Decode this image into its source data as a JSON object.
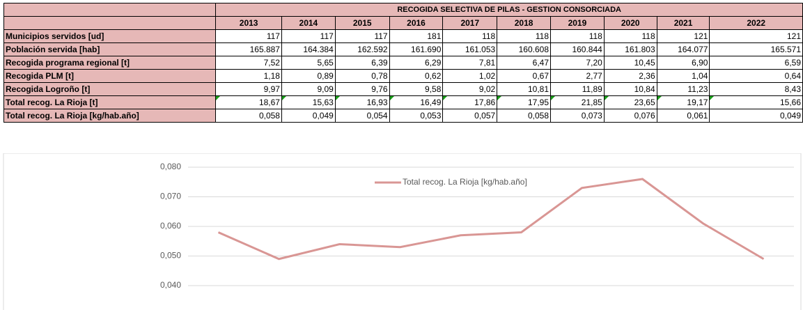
{
  "table": {
    "title": "RECOGIDA SELECTIVA DE PILAS - GESTION CONSORCIADA",
    "columns": [
      "2013",
      "2014",
      "2015",
      "2016",
      "2017",
      "2018",
      "2019",
      "2020",
      "2021",
      "2022"
    ],
    "rows": [
      {
        "label": "Municipios servidos [ud]",
        "cells": [
          "117",
          "117",
          "117",
          "181",
          "118",
          "118",
          "118",
          "118",
          "121",
          "121"
        ]
      },
      {
        "label": "Población servida [hab]",
        "cells": [
          "165.887",
          "164.384",
          "162.592",
          "161.690",
          "161.053",
          "160.608",
          "160.844",
          "161.803",
          "164.077",
          "165.571"
        ]
      },
      {
        "label": "Recogida programa regional [t]",
        "cells": [
          "7,52",
          "5,65",
          "6,39",
          "6,29",
          "7,81",
          "6,47",
          "7,20",
          "10,45",
          "6,90",
          "6,59"
        ]
      },
      {
        "label": "Recogida PLM [t]",
        "cells": [
          "1,18",
          "0,89",
          "0,78",
          "0,62",
          "1,02",
          "0,67",
          "2,77",
          "2,36",
          "1,04",
          "0,64"
        ]
      },
      {
        "label": "Recogida Logroño [t]",
        "cells": [
          "9,97",
          "9,09",
          "9,76",
          "9,58",
          "9,02",
          "10,81",
          "11,89",
          "10,84",
          "11,23",
          "8,43"
        ]
      },
      {
        "label": "Total recog. La Rioja [t]",
        "cells": [
          "18,67",
          "15,63",
          "16,93",
          "16,49",
          "17,86",
          "17,95",
          "21,85",
          "23,65",
          "19,17",
          "15,66"
        ]
      },
      {
        "label": "Total recog. La Rioja [kg/hab.año]",
        "cells": [
          "0,058",
          "0,049",
          "0,054",
          "0,053",
          "0,057",
          "0,058",
          "0,073",
          "0,076",
          "0,061",
          "0,049"
        ]
      }
    ]
  },
  "chart_data": {
    "type": "line",
    "series": [
      {
        "name": "Total recog. La Rioja [kg/hab.año]",
        "color": "#d99694",
        "values": [
          0.058,
          0.049,
          0.054,
          0.053,
          0.057,
          0.058,
          0.073,
          0.076,
          0.061,
          0.049
        ]
      }
    ],
    "ylim": [
      0.04,
      0.08
    ],
    "yticks": [
      {
        "value": 0.04,
        "label": "0,040"
      },
      {
        "value": 0.05,
        "label": "0,050"
      },
      {
        "value": 0.06,
        "label": "0,060"
      },
      {
        "value": 0.07,
        "label": "0,070"
      },
      {
        "value": 0.08,
        "label": "0,080"
      }
    ],
    "grid": true,
    "legend": "top"
  }
}
